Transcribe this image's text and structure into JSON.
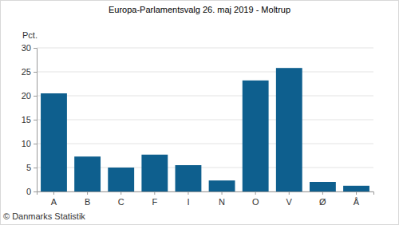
{
  "chart_data": {
    "type": "bar",
    "title": "Europa-Parlamentsvalg 26. maj 2019 - Moltrup",
    "y_label": "Pct.",
    "source": "© Danmarks Statistik",
    "categories": [
      "A",
      "B",
      "C",
      "F",
      "I",
      "N",
      "O",
      "V",
      "Ø",
      "Å"
    ],
    "values": [
      20.5,
      7.3,
      5.0,
      7.7,
      5.5,
      2.3,
      23.2,
      25.8,
      2.0,
      1.2
    ],
    "color": "#0e5f8e",
    "ylim": [
      0,
      30
    ],
    "yticks": [
      0,
      5,
      10,
      15,
      20,
      25,
      30
    ],
    "grid": true
  }
}
